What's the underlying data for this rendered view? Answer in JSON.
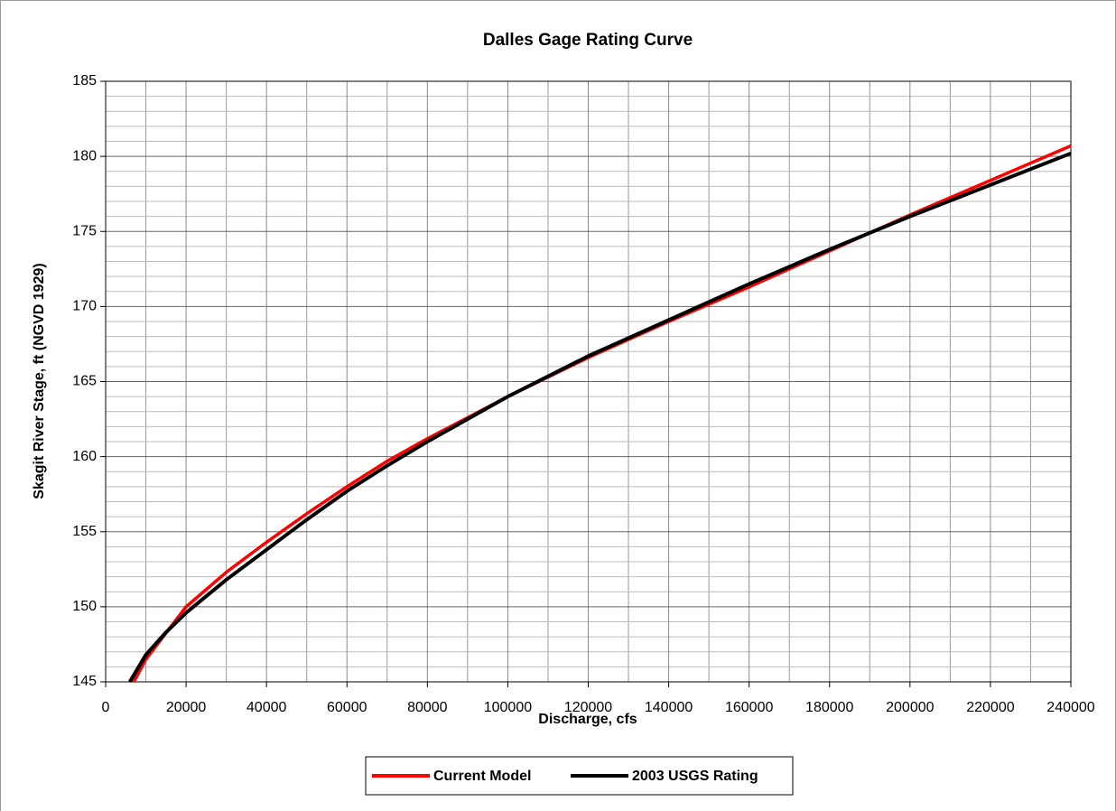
{
  "chart_data": {
    "type": "line",
    "title": "Dalles Gage Rating Curve",
    "x_label": "Discharge, cfs",
    "y_label": "Skagit River Stage, ft (NGVD 1929)",
    "xlim": [
      0,
      240000
    ],
    "ylim": [
      145,
      185
    ],
    "xticks": [
      0,
      20000,
      40000,
      60000,
      80000,
      100000,
      120000,
      140000,
      160000,
      180000,
      200000,
      220000,
      240000
    ],
    "yticks": [
      145,
      150,
      155,
      160,
      165,
      170,
      175,
      180,
      185
    ],
    "x_minor_grid": [
      10000,
      30000,
      50000,
      70000,
      90000,
      110000,
      130000,
      150000,
      170000,
      190000,
      210000,
      230000
    ],
    "y_minor_grid": [
      146,
      147,
      148,
      149,
      151,
      152,
      153,
      154,
      156,
      157,
      158,
      159,
      161,
      162,
      163,
      164,
      166,
      167,
      168,
      169,
      171,
      172,
      173,
      174,
      176,
      177,
      178,
      179,
      181,
      182,
      183,
      184
    ],
    "grid": true,
    "legend": "bottom",
    "series": [
      {
        "name": "Current Model",
        "color": "#ff0000",
        "x": [
          7000,
          10000,
          20000,
          30000,
          40000,
          50000,
          60000,
          70000,
          80000,
          100000,
          120000,
          140000,
          160000,
          180000,
          200000,
          220000,
          240000
        ],
        "values": [
          145,
          146.5,
          150,
          152.3,
          154.3,
          156.2,
          158,
          159.7,
          161.2,
          164,
          166.6,
          169,
          171.3,
          173.7,
          176.1,
          178.4,
          180.7
        ]
      },
      {
        "name": "2003 USGS Rating",
        "color": "#000000",
        "x": [
          6000,
          10000,
          15000,
          20000,
          30000,
          40000,
          50000,
          60000,
          70000,
          80000,
          100000,
          120000,
          140000,
          160000,
          180000,
          200000,
          220000,
          240000
        ],
        "values": [
          145,
          146.8,
          148.3,
          149.6,
          151.8,
          153.8,
          155.8,
          157.7,
          159.4,
          161,
          164,
          166.7,
          169.1,
          171.5,
          173.8,
          176,
          178.1,
          180.2
        ]
      }
    ]
  }
}
